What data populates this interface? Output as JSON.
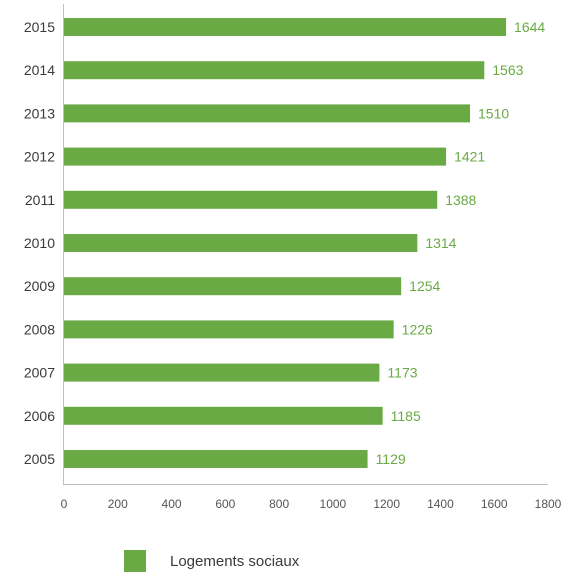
{
  "chart_data": {
    "type": "bar",
    "orientation": "horizontal",
    "categories": [
      "2015",
      "2014",
      "2013",
      "2012",
      "2011",
      "2010",
      "2009",
      "2008",
      "2007",
      "2006",
      "2005"
    ],
    "series": [
      {
        "name": "Logements sociaux",
        "color": "#6aaa45",
        "values": [
          1644,
          1563,
          1510,
          1421,
          1388,
          1314,
          1254,
          1226,
          1173,
          1185,
          1129
        ],
        "value_labels": [
          "1644",
          "1563",
          "1510",
          "1421",
          "1388",
          "1314",
          "1254",
          "1226",
          "1173",
          "1185",
          "1129"
        ]
      }
    ],
    "xlim": [
      0,
      1800
    ],
    "xticks": [
      "0",
      "200",
      "400",
      "600",
      "800",
      "1000",
      "1200",
      "1400",
      "1600",
      "1800"
    ],
    "grid": false,
    "legend_position": "bottom"
  }
}
